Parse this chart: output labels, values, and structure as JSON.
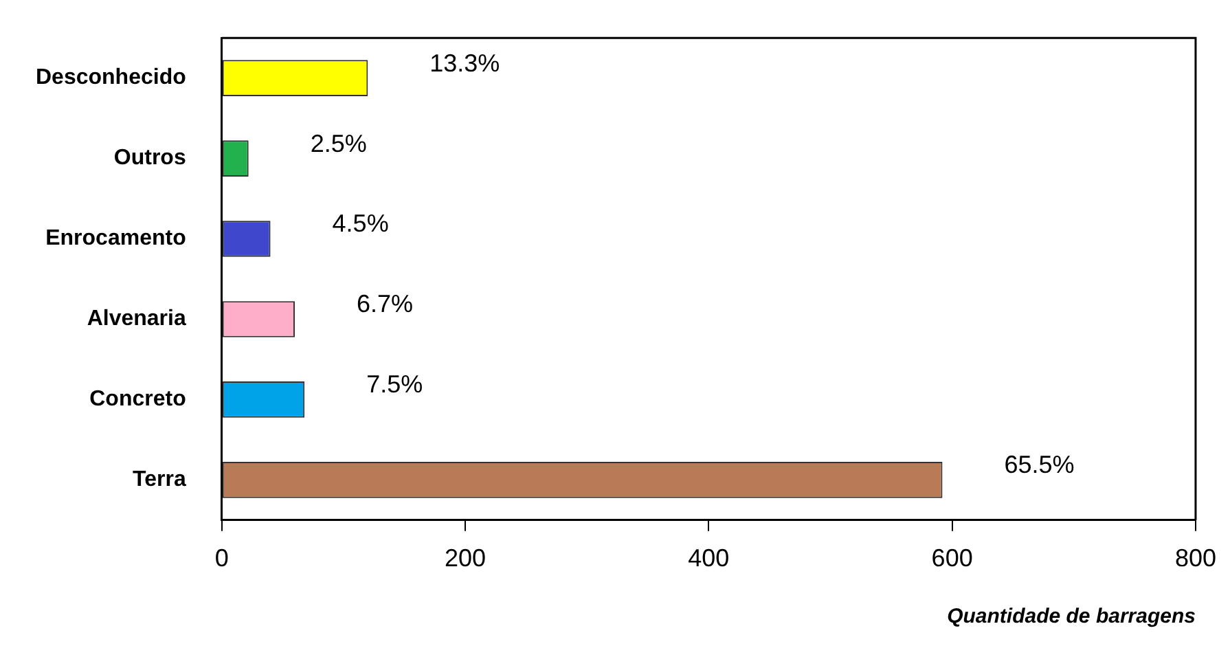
{
  "chart_data": {
    "type": "bar",
    "orientation": "horizontal",
    "xlabel": "Quantidade de barragens",
    "categories": [
      "Desconhecido",
      "Outros",
      "Enrocamento",
      "Alvenaria",
      "Concreto",
      "Terra"
    ],
    "values": [
      120,
      22,
      40,
      60,
      68,
      592
    ],
    "colors": [
      "#ffff00",
      "#22b14c",
      "#3f48cc",
      "#ffaec9",
      "#00a2e8",
      "#b97a57"
    ],
    "annotations": [
      {
        "text": "13.3%",
        "x": 120,
        "y": "Desconhecido"
      },
      {
        "text": "2.5%",
        "x": 22,
        "y": "Outros"
      },
      {
        "text": "4.5%",
        "x": 40,
        "y": "Enrocamento"
      },
      {
        "text": "6.7%",
        "x": 60,
        "y": "Alvenaria"
      },
      {
        "text": "7.5%",
        "x": 68,
        "y": "Concreto"
      },
      {
        "text": "65.5%",
        "x": 592,
        "y": "Terra"
      }
    ],
    "xlim": [
      0,
      800
    ],
    "xticks": [
      0,
      200,
      400,
      600,
      800
    ]
  }
}
